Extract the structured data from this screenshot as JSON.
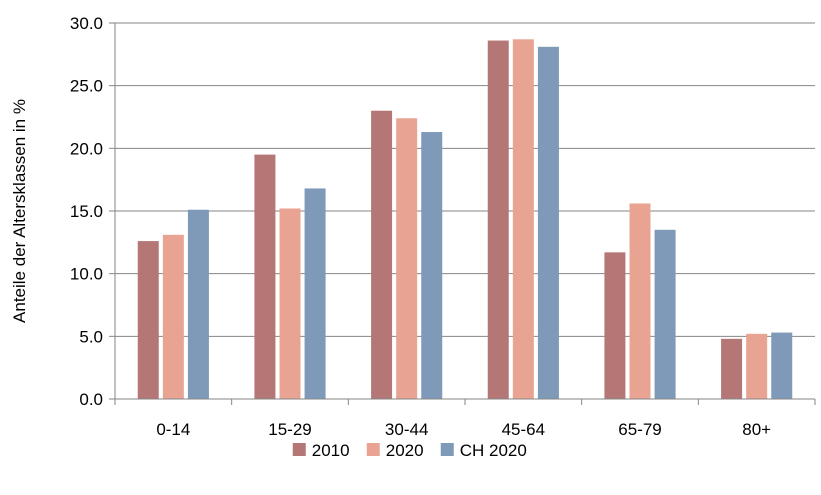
{
  "chart_data": {
    "type": "bar",
    "title": "",
    "xlabel": "",
    "ylabel": "Anteile der Altersklassen in %",
    "categories": [
      "0-14",
      "15-29",
      "30-44",
      "45-64",
      "65-79",
      "80+"
    ],
    "series": [
      {
        "name": "2010",
        "color": "#B47775",
        "values": [
          12.6,
          19.5,
          23.0,
          28.6,
          11.7,
          4.8
        ]
      },
      {
        "name": "2020",
        "color": "#E8A393",
        "values": [
          13.1,
          15.2,
          22.4,
          28.7,
          15.6,
          5.2
        ]
      },
      {
        "name": "CH 2020",
        "color": "#7E9AB8",
        "values": [
          15.1,
          16.8,
          21.3,
          28.1,
          13.5,
          5.3
        ]
      }
    ],
    "ylim": [
      0,
      30
    ],
    "yticks": [
      "0.0",
      "5.0",
      "10.0",
      "15.0",
      "20.0",
      "25.0",
      "30.0"
    ],
    "ytick_values": [
      0,
      5,
      10,
      15,
      20,
      25,
      30
    ],
    "grid": true,
    "legend_position": "bottom"
  }
}
